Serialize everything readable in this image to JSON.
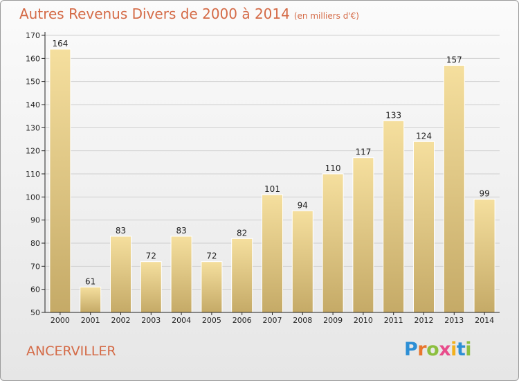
{
  "header": {
    "title": "Autres Revenus Divers de 2000 à 2014",
    "subtitle": "(en milliers d'€)"
  },
  "footer": {
    "commune": "ANCERVILLER",
    "brand_letters": [
      "P",
      "r",
      "o",
      "x",
      "i",
      "t",
      "i"
    ],
    "brand_colors": [
      "#2d8fd5",
      "#e8762d",
      "#8cbf3f",
      "#e84c8b",
      "#f2b01e",
      "#2d8fd5",
      "#8cbf3f"
    ]
  },
  "colors": {
    "title": "#d46a46",
    "bar_light": "#f5df9e",
    "bar_dark": "#c5aa67",
    "axis": "#222222",
    "grid": "#cfcfcf"
  },
  "chart_data": {
    "type": "bar",
    "categories": [
      "2000",
      "2001",
      "2002",
      "2003",
      "2004",
      "2005",
      "2006",
      "2007",
      "2008",
      "2009",
      "2010",
      "2011",
      "2012",
      "2013",
      "2014"
    ],
    "values": [
      164,
      61,
      83,
      72,
      83,
      72,
      82,
      101,
      94,
      110,
      117,
      133,
      124,
      157,
      99
    ],
    "ylim": [
      50,
      170
    ],
    "yticks": [
      50,
      60,
      70,
      80,
      90,
      100,
      110,
      120,
      130,
      140,
      150,
      160,
      170
    ],
    "grid": true,
    "data_labels": true
  }
}
